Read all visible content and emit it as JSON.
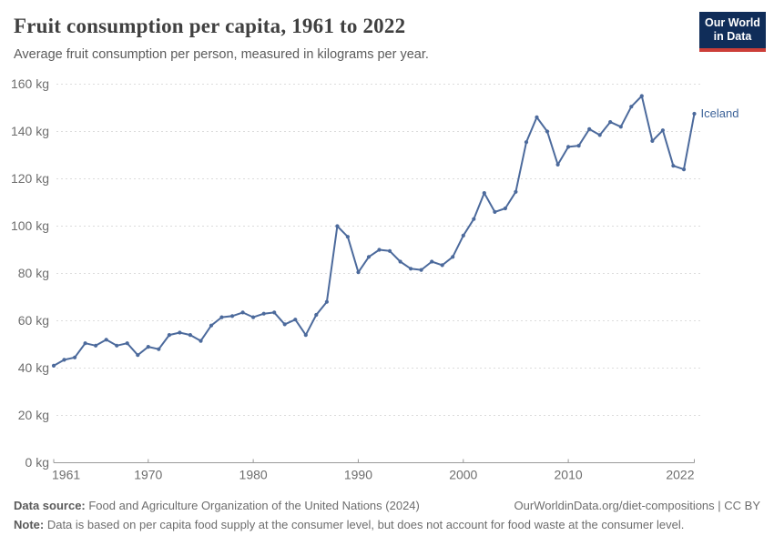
{
  "header": {
    "title": "Fruit consumption per capita, 1961 to 2022",
    "subtitle": "Average fruit consumption per person, measured in kilograms per year."
  },
  "logo": {
    "line1": "Our World",
    "line2": "in Data",
    "bg_color": "#102d59",
    "stripe_color": "#cc3e38",
    "text_color": "#ffffff"
  },
  "chart_data": {
    "type": "line",
    "title": "Fruit consumption per capita, 1961 to 2022",
    "ylabel": "kilograms per year",
    "ylim": [
      0,
      160
    ],
    "grid": "horizontal-dashed",
    "legend_position": "end-of-line-label",
    "x": [
      1961,
      1962,
      1963,
      1964,
      1965,
      1966,
      1967,
      1968,
      1969,
      1970,
      1971,
      1972,
      1973,
      1974,
      1975,
      1976,
      1977,
      1978,
      1979,
      1980,
      1981,
      1982,
      1983,
      1984,
      1985,
      1986,
      1987,
      1988,
      1989,
      1990,
      1991,
      1992,
      1993,
      1994,
      1995,
      1996,
      1997,
      1998,
      1999,
      2000,
      2001,
      2002,
      2003,
      2004,
      2005,
      2006,
      2007,
      2008,
      2009,
      2010,
      2011,
      2012,
      2013,
      2014,
      2015,
      2016,
      2017,
      2018,
      2019,
      2020,
      2021,
      2022
    ],
    "series": [
      {
        "name": "Iceland",
        "color": "#4c6a9c",
        "label_color": "#3d6399",
        "values": [
          41,
          43.5,
          44.5,
          50.5,
          49.5,
          52,
          49.5,
          50.5,
          45.5,
          49,
          48,
          54,
          55,
          54,
          51.5,
          58,
          61.5,
          62,
          63.5,
          61.5,
          63,
          63.5,
          58.5,
          60.5,
          54,
          62.5,
          68,
          100,
          95.5,
          80.5,
          87,
          90,
          89.5,
          85,
          82,
          81.5,
          85,
          83.5,
          87,
          96,
          103,
          114,
          106,
          107.5,
          114.5,
          135.5,
          146,
          140,
          126,
          133.5,
          134,
          141,
          138.5,
          144,
          142,
          150.5,
          155,
          136,
          140.5,
          125.5,
          124,
          147.5
        ]
      }
    ],
    "ytick_values": [
      0,
      20,
      40,
      60,
      80,
      100,
      120,
      140,
      160
    ],
    "ytick_labels": [
      "0 kg",
      "20 kg",
      "40 kg",
      "60 kg",
      "80 kg",
      "100 kg",
      "120 kg",
      "140 kg",
      "160 kg"
    ],
    "xtick_values": [
      1961,
      1970,
      1980,
      1990,
      2000,
      2010,
      2022
    ],
    "xtick_labels": [
      "1961",
      "1970",
      "1980",
      "1990",
      "2000",
      "2010",
      "2022"
    ],
    "gridline_color": "#dcdcdc",
    "axis_color": "#9a9a9a",
    "tick_label_color": "#6e6e6e"
  },
  "footer": {
    "source_label": "Data source:",
    "source_text": " Food and Agriculture Organization of the United Nations (2024)",
    "right_text": "OurWorldinData.org/diet-compositions | CC BY",
    "note_label": "Note:",
    "note_text": " Data is based on per capita food supply at the consumer level, but does not account for food waste at the consumer level."
  }
}
